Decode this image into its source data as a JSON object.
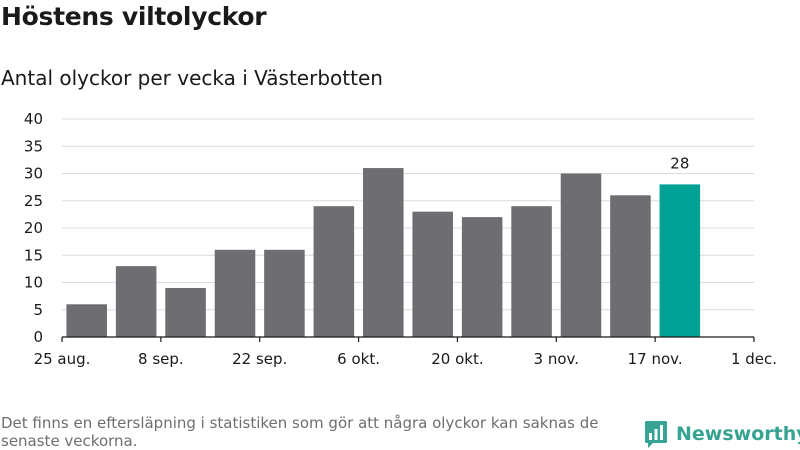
{
  "title": "Höstens viltolyckor",
  "subtitle": "Antal olyckor per vecka i Västerbotten",
  "footnote": "Det finns en eftersläpning i statistiken som gör att några olyckor kan saknas de senaste veckorna.",
  "brand": {
    "name": "Newsworthy",
    "icon": "newsworthy-logo-icon",
    "color": "#36a393"
  },
  "chart_data": {
    "type": "bar",
    "title": "",
    "xlabel": "",
    "ylabel": "",
    "ylim": [
      0,
      40
    ],
    "yticks": [
      0,
      5,
      10,
      15,
      20,
      25,
      30,
      35,
      40
    ],
    "grid": true,
    "bar_color": "#6e6d72",
    "highlight_color": "#00a094",
    "x_axis": {
      "tick_labels": [
        "25 aug.",
        "8 sep.",
        "22 sep.",
        "6 okt.",
        "20 okt.",
        "3 nov.",
        "17 nov.",
        "1 dec."
      ],
      "range_weeks": 14
    },
    "bars": [
      {
        "week_start": "2019-08-26",
        "value": 6
      },
      {
        "week_start": "2019-09-02",
        "value": 13
      },
      {
        "week_start": "2019-09-09",
        "value": 9
      },
      {
        "week_start": "2019-09-16",
        "value": 16
      },
      {
        "week_start": "2019-09-23",
        "value": 16
      },
      {
        "week_start": "2019-09-30",
        "value": 24
      },
      {
        "week_start": "2019-10-07",
        "value": 31
      },
      {
        "week_start": "2019-10-14",
        "value": 23
      },
      {
        "week_start": "2019-10-21",
        "value": 22
      },
      {
        "week_start": "2019-10-28",
        "value": 24
      },
      {
        "week_start": "2019-11-04",
        "value": 30
      },
      {
        "week_start": "2019-11-11",
        "value": 26
      },
      {
        "week_start": "2019-11-18",
        "value": 28,
        "highlight": true,
        "label": "28"
      }
    ]
  }
}
